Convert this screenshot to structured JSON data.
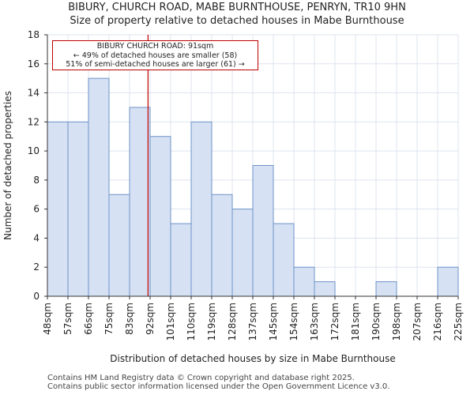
{
  "title": {
    "line1": "BIBURY, CHURCH ROAD, MABE BURNTHOUSE, PENRYN, TR10 9HN",
    "line2": "Size of property relative to detached houses in Mabe Burnthouse"
  },
  "footer": {
    "line1": "Contains HM Land Registry data © Crown copyright and database right 2025.",
    "line2": "Contains public sector information licensed under the Open Government Licence v3.0."
  },
  "annotation": {
    "line1": "BIBURY CHURCH ROAD: 91sqm",
    "line2": "← 49% of detached houses are smaller (58)",
    "line3": "51% of semi-detached houses are larger (61) →"
  },
  "colors": {
    "bar_fill": "#d6e1f3",
    "bar_stroke": "#6e93c9",
    "marker": "#c00000",
    "grid": "#dde3ee"
  },
  "chart_data": {
    "type": "bar",
    "title": "Size of property relative to detached houses in Mabe Burnthouse",
    "xlabel": "Distribution of detached houses by size in Mabe Burnthouse",
    "ylabel": "Number of detached properties",
    "bin_edges": [
      "48sqm",
      "57sqm",
      "66sqm",
      "75sqm",
      "83sqm",
      "92sqm",
      "101sqm",
      "110sqm",
      "119sqm",
      "128sqm",
      "137sqm",
      "145sqm",
      "154sqm",
      "163sqm",
      "172sqm",
      "181sqm",
      "190sqm",
      "198sqm",
      "207sqm",
      "216sqm",
      "225sqm"
    ],
    "values": [
      12,
      12,
      15,
      7,
      13,
      11,
      5,
      12,
      7,
      6,
      9,
      5,
      2,
      1,
      0,
      0,
      1,
      0,
      0,
      2
    ],
    "ylim": [
      0,
      18
    ],
    "yticks": [
      0,
      2,
      4,
      6,
      8,
      10,
      12,
      14,
      16,
      18
    ],
    "marker_value_sqm": 91,
    "marker_bin_position": 4.9,
    "grid": true
  }
}
